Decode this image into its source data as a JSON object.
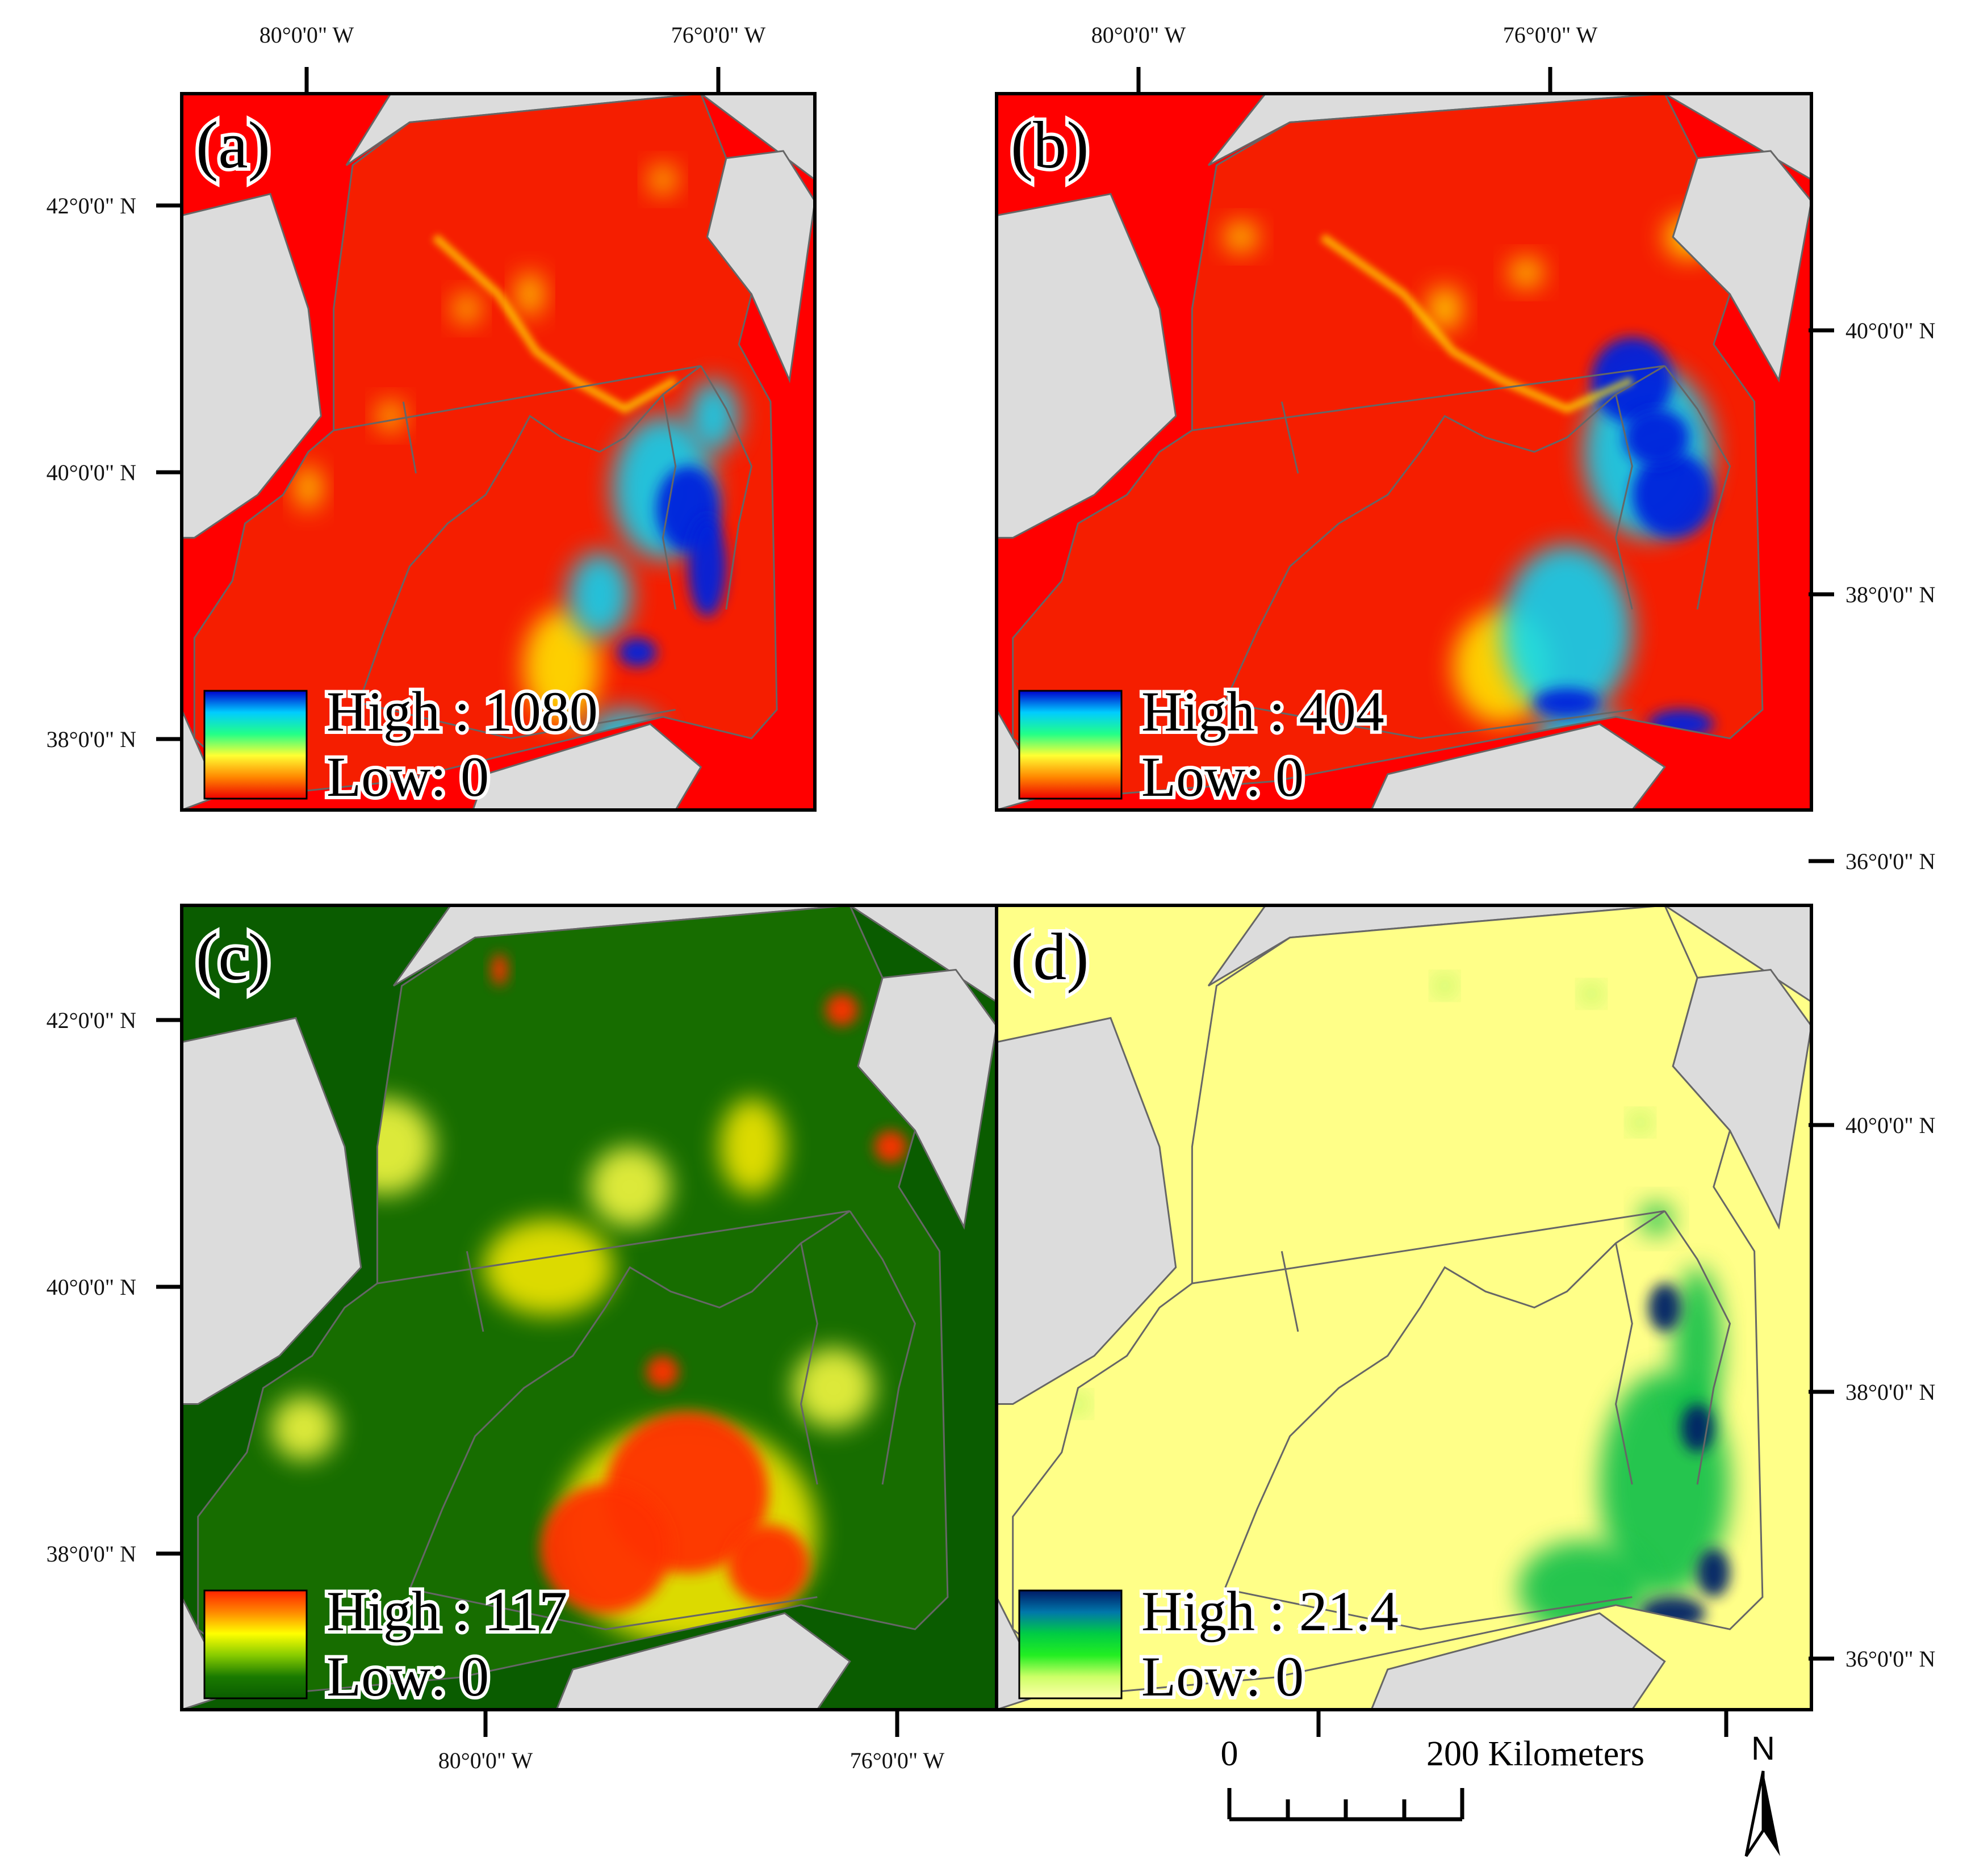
{
  "panels": [
    {
      "id": "a",
      "label": "(a)",
      "legend": {
        "high": "High : 1080",
        "low": "Low: 0",
        "gradient": [
          "#0000cc",
          "#00ccff",
          "#22ff88",
          "#ffff33",
          "#ff8800",
          "#ee0000"
        ]
      },
      "colors": {
        "outside": "#ff0000",
        "base": "#f51e00",
        "hot": "#0020dd",
        "mid": "#00ddff",
        "warm": "#ffee00"
      }
    },
    {
      "id": "b",
      "label": "(b)",
      "legend": {
        "high": "High : 404",
        "low": "Low: 0",
        "gradient": [
          "#0000cc",
          "#00ccff",
          "#22ff88",
          "#ffff33",
          "#ff8800",
          "#ee0000"
        ]
      },
      "colors": {
        "outside": "#ff0000",
        "base": "#f51e00",
        "hot": "#0020dd",
        "mid": "#00ddff",
        "warm": "#ffee00"
      }
    },
    {
      "id": "c",
      "label": "(c)",
      "legend": {
        "high": "High : 117",
        "low": "Low: 0",
        "gradient": [
          "#ff2200",
          "#ff8800",
          "#ffff00",
          "#88cc00",
          "#1a7a00",
          "#0a5c00"
        ]
      },
      "colors": {
        "outside": "#0a5c00",
        "base": "#176d00",
        "hot": "#ff3300",
        "mid": "#ffee00",
        "warm": "#ffff44"
      }
    },
    {
      "id": "d",
      "label": "(d)",
      "legend": {
        "high": "High : 21.4",
        "low": "Low: 0",
        "gradient": [
          "#001a66",
          "#0077aa",
          "#00cc44",
          "#22ee22",
          "#ccff66",
          "#ffffaa"
        ]
      },
      "colors": {
        "outside": "#ffff88",
        "base": "#ffff88",
        "hot": "#002266",
        "mid": "#00bb44",
        "warm": "#55ee33"
      }
    }
  ],
  "axes": {
    "top_lon": [
      "80°0'0\" W",
      "76°0'0\" W",
      "80°0'0\" W",
      "76°0'0\" W"
    ],
    "bottom_lon": [
      "80°0'0\" W",
      "76°0'0\" W"
    ],
    "left_lat": [
      "42°0'0\" N",
      "40°0'0\" N",
      "38°0'0\" N",
      "42°0'0\" N",
      "40°0'0\" N",
      "38°0'0\" N"
    ],
    "right_lat": [
      "40°0'0\" N",
      "38°0'0\" N",
      "36°0'0\" N",
      "40°0'0\" N",
      "38°0'0\" N",
      "36°0'0\" N"
    ]
  },
  "scale_bar": {
    "start": "0",
    "end": "200 Kilometers"
  },
  "north_arrow": {
    "label": "N"
  },
  "land_color": "#dcdcdc",
  "border_color": "#666666"
}
